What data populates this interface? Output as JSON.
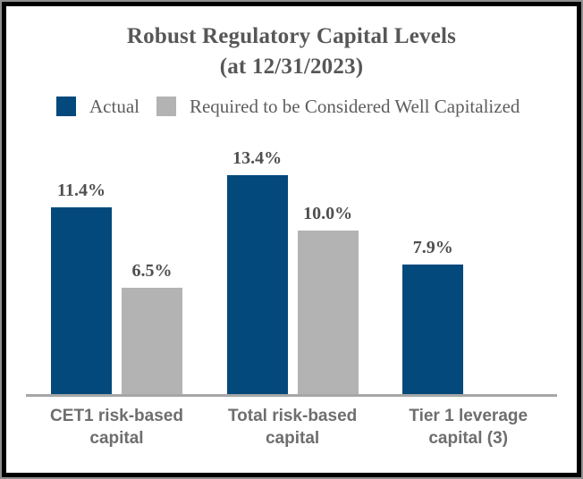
{
  "panel": {
    "title_line1": "Robust Regulatory Capital Levels",
    "title_line2": "(at 12/31/2023)"
  },
  "legend": {
    "items": [
      {
        "label": "Actual"
      },
      {
        "label": "Required to be Considered Well Capitalized"
      }
    ]
  },
  "chart_data": {
    "type": "bar",
    "title": "Robust Regulatory Capital Levels (at 12/31/2023)",
    "categories": [
      "CET1 risk-based\ncapital",
      "Total risk-based\ncapital",
      "Tier 1 leverage\ncapital (3)"
    ],
    "series": [
      {
        "name": "Actual",
        "color": "#03497B",
        "values": [
          11.4,
          13.4,
          7.9
        ],
        "labels": [
          "11.4%",
          "13.4%",
          "7.9%"
        ]
      },
      {
        "name": "Required to be Considered Well Capitalized",
        "color": "#B3B3B3",
        "values": [
          6.5,
          10.0,
          null
        ],
        "labels": [
          "6.5%",
          "10.0%",
          null
        ]
      }
    ],
    "value_suffix": "%",
    "ylim": [
      0,
      16
    ],
    "grid": false,
    "legend_position": "top",
    "colors": {
      "axis_line": "#A6A6A6",
      "title_text": "#575757",
      "value_label_text": "#4F4F4F",
      "category_text": "#6E6E6E"
    }
  }
}
